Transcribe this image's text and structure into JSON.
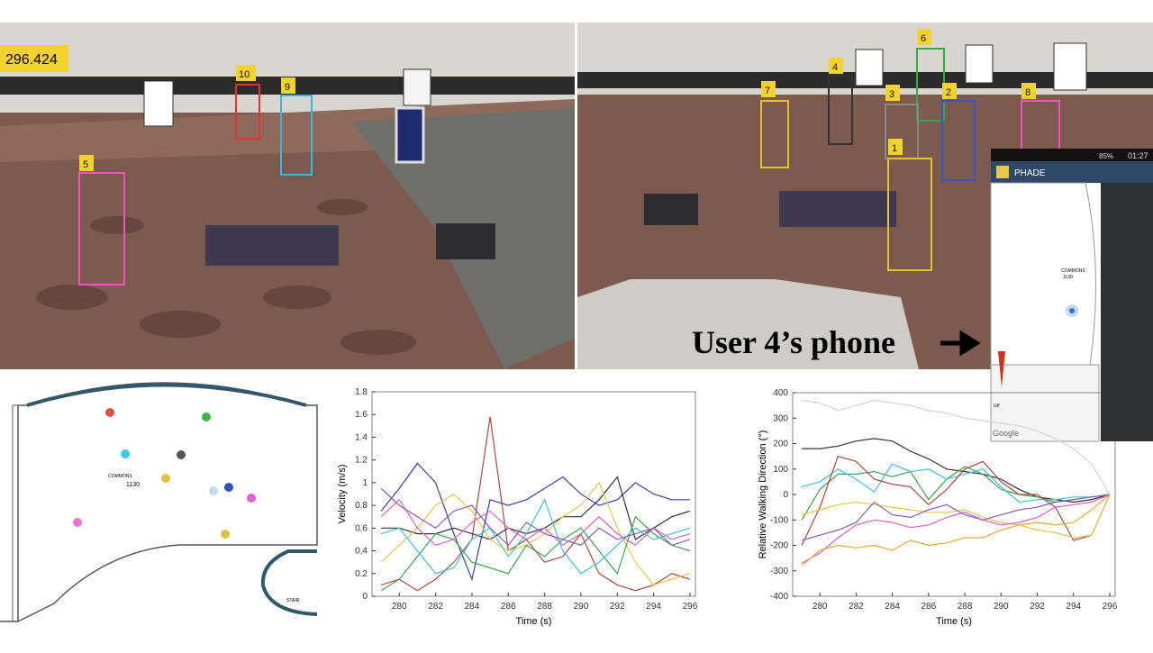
{
  "timestamp": "296.424",
  "cameras": [
    {
      "tracks": [
        "5",
        "10",
        "9"
      ]
    },
    {
      "tracks": [
        "7",
        "4",
        "6",
        "3",
        "2",
        "8",
        "1"
      ]
    }
  ],
  "caption": "User 4’s phone",
  "phone": {
    "clock": "01:27",
    "battery": "85%",
    "app": "PHADE",
    "room": "COMMONS",
    "room_number": "1130",
    "stair": "UP",
    "map_credit": "Google"
  },
  "floor_plan": {
    "room": "COMMONS",
    "room_number": "1130",
    "stair": "STAIR"
  },
  "chart_data": [
    {
      "type": "line",
      "x_label": "Time (s)",
      "y_label": "Velocity (m/s)",
      "x": [
        279,
        280,
        281,
        282,
        283,
        284,
        285,
        286,
        287,
        288,
        289,
        290,
        291,
        292,
        293,
        294,
        295,
        296
      ],
      "xlim": [
        278.5,
        296.3
      ],
      "xticks": [
        280,
        282,
        284,
        286,
        288,
        290,
        292,
        294,
        296
      ],
      "ylim": [
        0,
        1.8
      ],
      "yticks": [
        0,
        0.2,
        0.4,
        0.6,
        0.8,
        1,
        1.2,
        1.4,
        1.6,
        1.8
      ],
      "series": [
        {
          "color": "#3b3bb0",
          "values": [
            0.75,
            0.95,
            1.17,
            1.0,
            0.55,
            0.15,
            0.85,
            0.8,
            0.85,
            0.95,
            1.05,
            0.9,
            0.8,
            0.85,
            1.0,
            0.9,
            0.85,
            0.85
          ]
        },
        {
          "color": "#b0483a",
          "values": [
            0.1,
            0.15,
            0.05,
            0.15,
            0.3,
            0.5,
            1.58,
            0.4,
            0.5,
            0.3,
            0.35,
            0.55,
            0.2,
            0.1,
            0.05,
            0.1,
            0.2,
            0.15
          ]
        },
        {
          "color": "#333333",
          "values": [
            0.6,
            0.6,
            0.55,
            0.55,
            0.6,
            0.55,
            0.5,
            0.6,
            0.55,
            0.6,
            0.7,
            0.7,
            0.85,
            1.05,
            0.5,
            0.6,
            0.7,
            0.75
          ]
        },
        {
          "color": "#e8c84a",
          "values": [
            0.3,
            0.45,
            0.6,
            0.8,
            0.9,
            0.75,
            0.5,
            0.4,
            0.45,
            0.55,
            0.7,
            0.8,
            1.0,
            0.6,
            0.3,
            0.1,
            0.15,
            0.2
          ]
        },
        {
          "color": "#3aa84a",
          "values": [
            0.05,
            0.15,
            0.35,
            0.55,
            0.5,
            0.3,
            0.25,
            0.2,
            0.45,
            0.35,
            0.5,
            0.6,
            0.4,
            0.2,
            0.7,
            0.55,
            0.45,
            0.4
          ]
        },
        {
          "color": "#3cc4d8",
          "values": [
            0.55,
            0.6,
            0.4,
            0.2,
            0.25,
            0.5,
            0.6,
            0.35,
            0.55,
            0.85,
            0.4,
            0.2,
            0.3,
            0.45,
            0.6,
            0.5,
            0.55,
            0.6
          ]
        },
        {
          "color": "#e060c8",
          "values": [
            0.7,
            0.85,
            0.6,
            0.45,
            0.5,
            0.65,
            0.75,
            0.6,
            0.5,
            0.6,
            0.45,
            0.55,
            0.7,
            0.55,
            0.45,
            0.6,
            0.5,
            0.55
          ]
        },
        {
          "color": "#8a5ac0",
          "values": [
            0.95,
            0.8,
            0.7,
            0.6,
            0.75,
            0.8,
            0.6,
            0.45,
            0.65,
            0.55,
            0.5,
            0.45,
            0.6,
            0.5,
            0.55,
            0.6,
            0.45,
            0.5
          ]
        }
      ]
    },
    {
      "type": "line",
      "x_label": "Time (s)",
      "y_label": "Relative Walking Direction (°)",
      "x": [
        279,
        280,
        281,
        282,
        283,
        284,
        285,
        286,
        287,
        288,
        289,
        290,
        291,
        292,
        293,
        294,
        295,
        296
      ],
      "xlim": [
        278.5,
        296.3
      ],
      "xticks": [
        280,
        282,
        284,
        286,
        288,
        290,
        292,
        294,
        296
      ],
      "ylim": [
        -400,
        400
      ],
      "yticks": [
        -400,
        -300,
        -200,
        -100,
        0,
        100,
        200,
        300,
        400
      ],
      "series": [
        {
          "color": "#333333",
          "values": [
            180,
            180,
            190,
            210,
            220,
            210,
            170,
            140,
            100,
            90,
            80,
            60,
            20,
            -10,
            -20,
            -30,
            -20,
            0
          ]
        },
        {
          "color": "#3aa84a",
          "values": [
            -100,
            20,
            80,
            80,
            90,
            70,
            90,
            -20,
            60,
            110,
            80,
            20,
            0,
            -10,
            -30,
            -20,
            -10,
            0
          ]
        },
        {
          "color": "#3cc4d8",
          "values": [
            30,
            50,
            100,
            60,
            10,
            120,
            90,
            100,
            60,
            80,
            100,
            30,
            -30,
            -20,
            -20,
            -10,
            -10,
            0
          ]
        },
        {
          "color": "#b0483a",
          "values": [
            -200,
            -50,
            150,
            130,
            60,
            40,
            30,
            -40,
            20,
            100,
            130,
            50,
            0,
            0,
            -50,
            -180,
            -160,
            0
          ]
        },
        {
          "color": "#e8c84a",
          "values": [
            -80,
            -60,
            -40,
            -30,
            -40,
            -50,
            -60,
            -70,
            -70,
            -60,
            -90,
            -110,
            -120,
            -140,
            -150,
            -170,
            -160,
            0
          ]
        },
        {
          "color": "#e060c8",
          "values": [
            -270,
            -230,
            -170,
            -120,
            -100,
            -110,
            -130,
            -120,
            -90,
            -70,
            -100,
            -120,
            -110,
            -90,
            -50,
            -40,
            -30,
            0
          ]
        },
        {
          "color": "#8a5ac0",
          "values": [
            -180,
            -160,
            -140,
            -110,
            -30,
            -80,
            -90,
            -60,
            -40,
            -80,
            -100,
            -80,
            -60,
            -50,
            -30,
            -20,
            -10,
            0
          ]
        },
        {
          "color": "#f0a830",
          "values": [
            -280,
            -220,
            -200,
            -210,
            -200,
            -220,
            -180,
            -200,
            -190,
            -170,
            -170,
            -140,
            -120,
            -110,
            -120,
            -110,
            -60,
            0
          ]
        },
        {
          "color": "#c8d4e8",
          "values": [
            370,
            360,
            330,
            350,
            370,
            360,
            350,
            330,
            320,
            300,
            290,
            280,
            270,
            250,
            220,
            180,
            120,
            0
          ]
        }
      ]
    }
  ]
}
